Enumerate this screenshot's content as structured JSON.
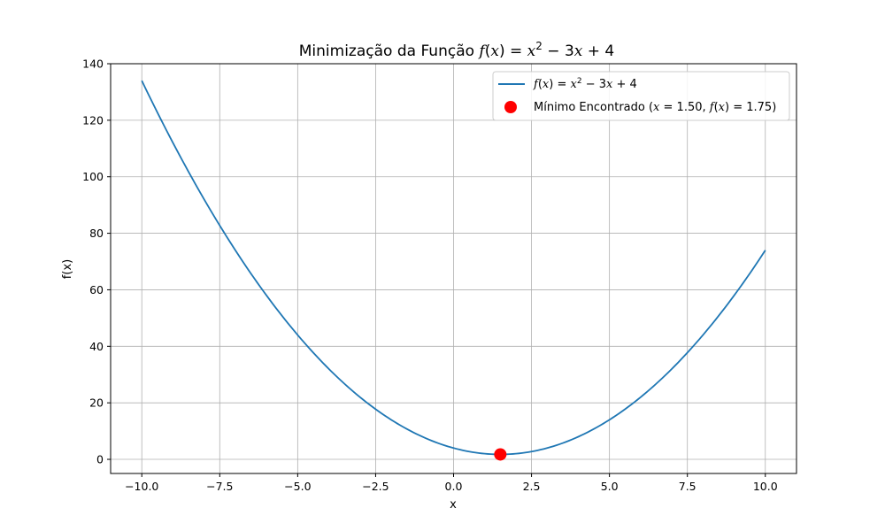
{
  "chart_data": {
    "type": "line",
    "title_prefix": "Minimização da Função ",
    "title_formula": {
      "f": "f",
      "open": "(",
      "x": "x",
      "close": ")",
      "eq": " = ",
      "x2": "x",
      "exp": "2",
      "rest": " − 3",
      "x3": "x",
      "tail": " + 4"
    },
    "xlabel": "x",
    "ylabel": "f(x)",
    "xlim": [
      -11,
      11
    ],
    "ylim": [
      -5,
      140
    ],
    "x_ticks": [
      -10.0,
      -7.5,
      -5.0,
      -2.5,
      0.0,
      2.5,
      5.0,
      7.5,
      10.0
    ],
    "x_tick_labels": [
      "−10.0",
      "−7.5",
      "−5.0",
      "−2.5",
      "0.0",
      "2.5",
      "5.0",
      "7.5",
      "10.0"
    ],
    "y_ticks": [
      0,
      20,
      40,
      60,
      80,
      100,
      120,
      140
    ],
    "y_tick_labels": [
      "0",
      "20",
      "40",
      "60",
      "80",
      "100",
      "120",
      "140"
    ],
    "grid": true,
    "legend_position": "top-right",
    "series": [
      {
        "kind": "line",
        "color": "#1f77b4",
        "function": "x^2 - 3x + 4",
        "x_range": [
          -10,
          10
        ],
        "sample_points": [
          [
            -10,
            134
          ],
          [
            -7.5,
            82.75
          ],
          [
            -5,
            44
          ],
          [
            -2.5,
            17.75
          ],
          [
            0,
            4
          ],
          [
            1.5,
            1.75
          ],
          [
            2.5,
            1.75
          ],
          [
            5,
            14
          ],
          [
            7.5,
            37.75
          ],
          [
            10,
            74
          ]
        ]
      },
      {
        "kind": "scatter",
        "color": "#ff0000",
        "points": [
          [
            1.5,
            1.75
          ]
        ]
      }
    ],
    "legend": {
      "line_entry": {
        "f": "f",
        "open": "(",
        "x": "x",
        "close": ")",
        "eq": " = ",
        "x2": "x",
        "exp": "2",
        "rest": " − 3",
        "x3": "x",
        "tail": " + 4"
      },
      "scatter_entry": {
        "prefix": "Mínimo Encontrado (",
        "x": "x",
        "xeq": " = 1.50, ",
        "f": "f",
        "open": "(",
        "fx": "x",
        "close": ")",
        "feq": " = 1.75",
        "suffix": ")"
      }
    }
  }
}
